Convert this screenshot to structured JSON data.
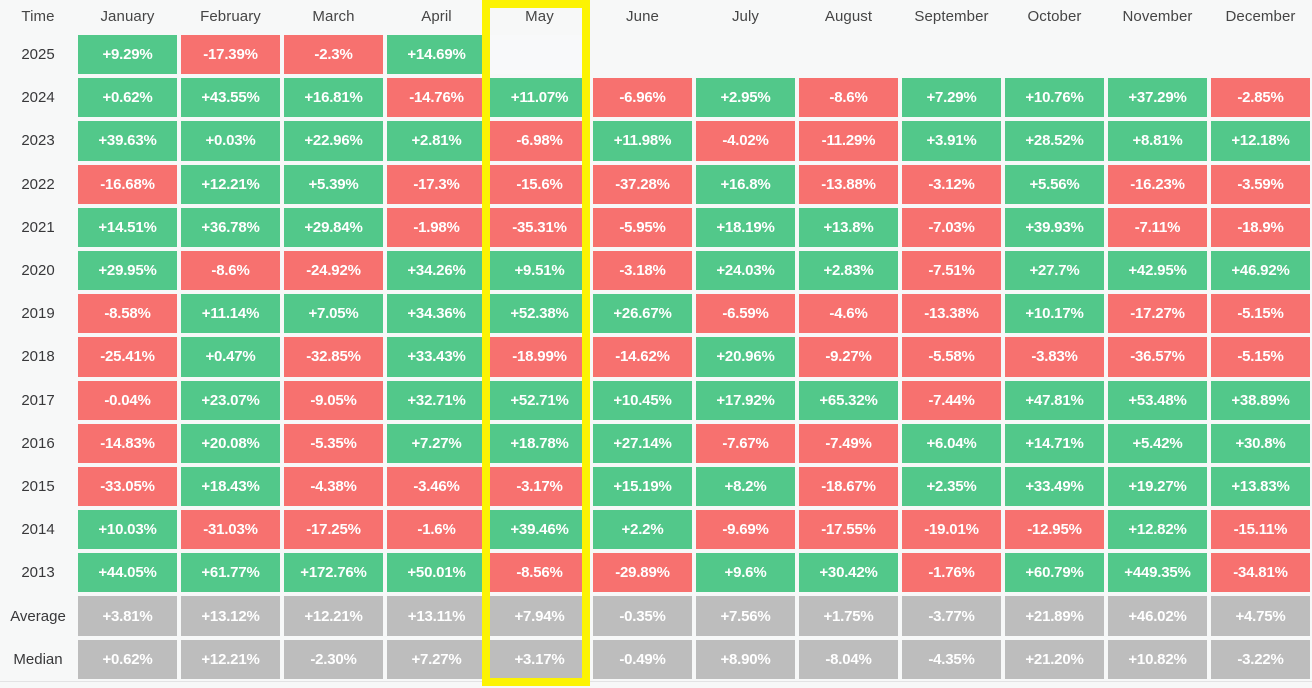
{
  "table": {
    "corner_label": "Time",
    "months": [
      "January",
      "February",
      "March",
      "April",
      "May",
      "June",
      "July",
      "August",
      "September",
      "October",
      "November",
      "December"
    ],
    "highlighted_month": "May",
    "rows": [
      {
        "label": "2025",
        "type": "year",
        "values": [
          "+9.29%",
          "-17.39%",
          "-2.3%",
          "+14.69%",
          "",
          null,
          null,
          null,
          null,
          null,
          null,
          null
        ]
      },
      {
        "label": "2024",
        "type": "year",
        "values": [
          "+0.62%",
          "+43.55%",
          "+16.81%",
          "-14.76%",
          "+11.07%",
          "-6.96%",
          "+2.95%",
          "-8.6%",
          "+7.29%",
          "+10.76%",
          "+37.29%",
          "-2.85%"
        ]
      },
      {
        "label": "2023",
        "type": "year",
        "values": [
          "+39.63%",
          "+0.03%",
          "+22.96%",
          "+2.81%",
          "-6.98%",
          "+11.98%",
          "-4.02%",
          "-11.29%",
          "+3.91%",
          "+28.52%",
          "+8.81%",
          "+12.18%"
        ]
      },
      {
        "label": "2022",
        "type": "year",
        "values": [
          "-16.68%",
          "+12.21%",
          "+5.39%",
          "-17.3%",
          "-15.6%",
          "-37.28%",
          "+16.8%",
          "-13.88%",
          "-3.12%",
          "+5.56%",
          "-16.23%",
          "-3.59%"
        ]
      },
      {
        "label": "2021",
        "type": "year",
        "values": [
          "+14.51%",
          "+36.78%",
          "+29.84%",
          "-1.98%",
          "-35.31%",
          "-5.95%",
          "+18.19%",
          "+13.8%",
          "-7.03%",
          "+39.93%",
          "-7.11%",
          "-18.9%"
        ]
      },
      {
        "label": "2020",
        "type": "year",
        "values": [
          "+29.95%",
          "-8.6%",
          "-24.92%",
          "+34.26%",
          "+9.51%",
          "-3.18%",
          "+24.03%",
          "+2.83%",
          "-7.51%",
          "+27.7%",
          "+42.95%",
          "+46.92%"
        ]
      },
      {
        "label": "2019",
        "type": "year",
        "values": [
          "-8.58%",
          "+11.14%",
          "+7.05%",
          "+34.36%",
          "+52.38%",
          "+26.67%",
          "-6.59%",
          "-4.6%",
          "-13.38%",
          "+10.17%",
          "-17.27%",
          "-5.15%"
        ]
      },
      {
        "label": "2018",
        "type": "year",
        "values": [
          "-25.41%",
          "+0.47%",
          "-32.85%",
          "+33.43%",
          "-18.99%",
          "-14.62%",
          "+20.96%",
          "-9.27%",
          "-5.58%",
          "-3.83%",
          "-36.57%",
          "-5.15%"
        ]
      },
      {
        "label": "2017",
        "type": "year",
        "values": [
          "-0.04%",
          "+23.07%",
          "-9.05%",
          "+32.71%",
          "+52.71%",
          "+10.45%",
          "+17.92%",
          "+65.32%",
          "-7.44%",
          "+47.81%",
          "+53.48%",
          "+38.89%"
        ]
      },
      {
        "label": "2016",
        "type": "year",
        "values": [
          "-14.83%",
          "+20.08%",
          "-5.35%",
          "+7.27%",
          "+18.78%",
          "+27.14%",
          "-7.67%",
          "-7.49%",
          "+6.04%",
          "+14.71%",
          "+5.42%",
          "+30.8%"
        ]
      },
      {
        "label": "2015",
        "type": "year",
        "values": [
          "-33.05%",
          "+18.43%",
          "-4.38%",
          "-3.46%",
          "-3.17%",
          "+15.19%",
          "+8.2%",
          "-18.67%",
          "+2.35%",
          "+33.49%",
          "+19.27%",
          "+13.83%"
        ]
      },
      {
        "label": "2014",
        "type": "year",
        "values": [
          "+10.03%",
          "-31.03%",
          "-17.25%",
          "-1.6%",
          "+39.46%",
          "+2.2%",
          "-9.69%",
          "-17.55%",
          "-19.01%",
          "-12.95%",
          "+12.82%",
          "-15.11%"
        ]
      },
      {
        "label": "2013",
        "type": "year",
        "values": [
          "+44.05%",
          "+61.77%",
          "+172.76%",
          "+50.01%",
          "-8.56%",
          "-29.89%",
          "+9.6%",
          "+30.42%",
          "-1.76%",
          "+60.79%",
          "+449.35%",
          "-34.81%"
        ]
      },
      {
        "label": "Average",
        "type": "summary",
        "values": [
          "+3.81%",
          "+13.12%",
          "+12.21%",
          "+13.11%",
          "+7.94%",
          "-0.35%",
          "+7.56%",
          "+1.75%",
          "-3.77%",
          "+21.89%",
          "+46.02%",
          "+4.75%"
        ]
      },
      {
        "label": "Median",
        "type": "summary",
        "values": [
          "+0.62%",
          "+12.21%",
          "-2.30%",
          "+7.27%",
          "+3.17%",
          "-0.49%",
          "+8.90%",
          "-8.04%",
          "-4.35%",
          "+21.20%",
          "+10.82%",
          "-3.22%"
        ]
      }
    ]
  },
  "colors": {
    "positive": "#52c88a",
    "negative": "#f7716f",
    "summary": "#bdbdbd",
    "empty_cell": "#f8f9fa",
    "highlight": "#fcf303",
    "background": "#f7f8f8"
  }
}
